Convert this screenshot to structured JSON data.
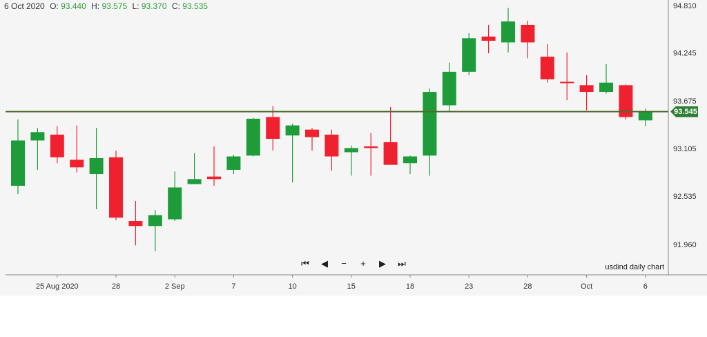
{
  "header": {
    "date": "6 Oct 2020",
    "o_label": "O:",
    "o_value": "93.440",
    "h_label": "H:",
    "h_value": "93.575",
    "l_label": "L:",
    "l_value": "93.370",
    "c_label": "C:",
    "c_value": "93.535"
  },
  "caption": "usdind daily chart",
  "last_price_tag": "93.545",
  "nav": {
    "first": "⏮",
    "prev": "◀",
    "zoom_out": "−",
    "zoom_in": "+",
    "next": "▶",
    "last": "⏭"
  },
  "colors": {
    "up": "#1e9c3a",
    "down": "#f0212f",
    "line": "#4e6b2d",
    "axis": "#888888",
    "bg": "#f5f5f5"
  },
  "chart_data": {
    "type": "candlestick",
    "ylim": [
      91.7,
      94.9
    ],
    "y_ticks": [
      "94.810",
      "94.245",
      "93.675",
      "93.105",
      "92.535",
      "91.960"
    ],
    "x_ticks": [
      {
        "label": "25 Aug 2020",
        "index": 2
      },
      {
        "label": "28",
        "index": 5
      },
      {
        "label": "2 Sep",
        "index": 8
      },
      {
        "label": "7",
        "index": 11
      },
      {
        "label": "10",
        "index": 14
      },
      {
        "label": "15",
        "index": 17
      },
      {
        "label": "18",
        "index": 20
      },
      {
        "label": "23",
        "index": 23
      },
      {
        "label": "28",
        "index": 26
      },
      {
        "label": "Oct",
        "index": 29
      },
      {
        "label": "6",
        "index": 32
      }
    ],
    "horizontal_line": 93.545,
    "candles": [
      {
        "o": 92.66,
        "h": 93.45,
        "l": 92.56,
        "c": 93.2
      },
      {
        "o": 93.2,
        "h": 93.35,
        "l": 92.85,
        "c": 93.3
      },
      {
        "o": 93.27,
        "h": 93.37,
        "l": 92.93,
        "c": 93.0
      },
      {
        "o": 92.97,
        "h": 93.38,
        "l": 92.82,
        "c": 92.88
      },
      {
        "o": 92.8,
        "h": 93.35,
        "l": 92.38,
        "c": 92.99
      },
      {
        "o": 93.0,
        "h": 93.08,
        "l": 92.25,
        "c": 92.28
      },
      {
        "o": 92.24,
        "h": 92.48,
        "l": 91.95,
        "c": 92.18
      },
      {
        "o": 92.18,
        "h": 92.37,
        "l": 91.88,
        "c": 92.31
      },
      {
        "o": 92.26,
        "h": 92.83,
        "l": 92.24,
        "c": 92.64
      },
      {
        "o": 92.68,
        "h": 93.05,
        "l": 92.68,
        "c": 92.74
      },
      {
        "o": 92.77,
        "h": 93.13,
        "l": 92.66,
        "c": 92.74
      },
      {
        "o": 92.85,
        "h": 93.03,
        "l": 92.8,
        "c": 93.01
      },
      {
        "o": 93.02,
        "h": 93.47,
        "l": 93.01,
        "c": 93.46
      },
      {
        "o": 93.48,
        "h": 93.61,
        "l": 93.08,
        "c": 93.22
      },
      {
        "o": 93.26,
        "h": 93.4,
        "l": 92.7,
        "c": 93.38
      },
      {
        "o": 93.33,
        "h": 93.35,
        "l": 93.08,
        "c": 93.24
      },
      {
        "o": 93.27,
        "h": 93.33,
        "l": 92.84,
        "c": 93.01
      },
      {
        "o": 93.06,
        "h": 93.14,
        "l": 92.78,
        "c": 93.11
      },
      {
        "o": 93.13,
        "h": 93.29,
        "l": 92.78,
        "c": 93.11
      },
      {
        "o": 93.18,
        "h": 93.6,
        "l": 92.94,
        "c": 92.91
      },
      {
        "o": 92.93,
        "h": 93.02,
        "l": 92.8,
        "c": 93.01
      },
      {
        "o": 93.02,
        "h": 93.82,
        "l": 92.78,
        "c": 93.78
      },
      {
        "o": 93.62,
        "h": 94.13,
        "l": 93.55,
        "c": 94.02
      },
      {
        "o": 94.02,
        "h": 94.48,
        "l": 93.98,
        "c": 94.42
      },
      {
        "o": 94.44,
        "h": 94.58,
        "l": 94.24,
        "c": 94.39
      },
      {
        "o": 94.37,
        "h": 94.78,
        "l": 94.25,
        "c": 94.62
      },
      {
        "o": 94.58,
        "h": 94.63,
        "l": 94.18,
        "c": 94.37
      },
      {
        "o": 94.2,
        "h": 94.35,
        "l": 93.89,
        "c": 93.93
      },
      {
        "o": 93.9,
        "h": 94.25,
        "l": 93.68,
        "c": 93.89
      },
      {
        "o": 93.86,
        "h": 93.98,
        "l": 93.56,
        "c": 93.78
      },
      {
        "o": 93.78,
        "h": 94.11,
        "l": 93.76,
        "c": 93.89
      },
      {
        "o": 93.86,
        "h": 93.87,
        "l": 93.45,
        "c": 93.48
      },
      {
        "o": 93.44,
        "h": 93.58,
        "l": 93.37,
        "c": 93.54
      }
    ]
  }
}
